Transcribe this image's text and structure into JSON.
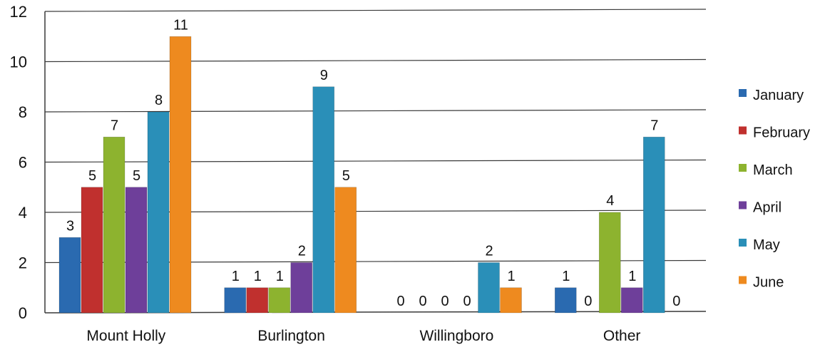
{
  "chart_data": {
    "type": "bar",
    "categories": [
      "Mount Holly",
      "Burlington",
      "Willingboro",
      "Other"
    ],
    "series": [
      {
        "name": "January",
        "values": [
          3,
          1,
          0,
          1
        ],
        "color": "#2A6AB0"
      },
      {
        "name": "February",
        "values": [
          5,
          1,
          0,
          0
        ],
        "color": "#C0302E"
      },
      {
        "name": "March",
        "values": [
          7,
          1,
          0,
          4
        ],
        "color": "#8DB32F"
      },
      {
        "name": "April",
        "values": [
          5,
          2,
          0,
          1
        ],
        "color": "#6E3F9A"
      },
      {
        "name": "May",
        "values": [
          8,
          9,
          2,
          7
        ],
        "color": "#2A8FB8"
      },
      {
        "name": "June",
        "values": [
          11,
          5,
          1,
          0
        ],
        "color": "#EE8A1F"
      }
    ],
    "ylim": [
      0,
      12
    ],
    "yticks": [
      0,
      2,
      4,
      6,
      8,
      10,
      12
    ],
    "grid": true,
    "legend_position": "right",
    "data_labels": true
  }
}
